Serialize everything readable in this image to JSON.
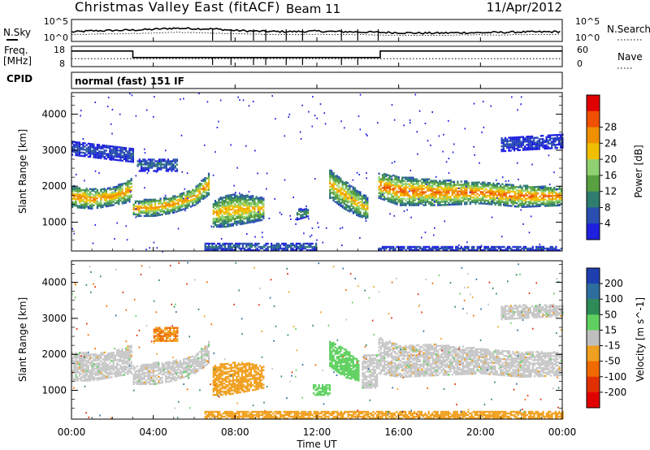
{
  "header": {
    "title": "Christmas Valley East (fitACF)",
    "beam": "Beam 11",
    "date": "11/Apr/2012"
  },
  "top_panels": {
    "nsky_label": "N.Sky",
    "nsearch_label": "N.Search",
    "nsky_ticks": [
      "10^5",
      "10^0"
    ],
    "nsearch_ticks": [
      "10^5",
      "10^0"
    ],
    "freq_label": "Freq.",
    "freq_unit": "[MHz]",
    "freq_ticks": [
      "18",
      "8"
    ],
    "nave_label": "Nave",
    "nave_ticks": [
      "60",
      "0"
    ],
    "cpid_label": "CPID",
    "cpid_value": "normal (fast) 151 IF"
  },
  "colors": {
    "power_scale": [
      "#1f1fe0",
      "#2a4fb0",
      "#2e7d6e",
      "#58a040",
      "#8fd070",
      "#f0c000",
      "#f09000",
      "#f05000",
      "#e00000"
    ],
    "velocity_scale": [
      "#1f3fb0",
      "#2e6e9e",
      "#2e8b57",
      "#5fd05f",
      "#bfbfbf",
      "#f0a020",
      "#f06a00",
      "#e03000",
      "#e00000"
    ],
    "text": "#000000"
  },
  "chart_data": [
    {
      "type": "line",
      "name": "noise-panel",
      "ylabel": "N.Sky",
      "y2label": "N.Search",
      "y_ticks": [
        "10^5",
        "10^0"
      ],
      "y2_ticks": [
        "10^5",
        "10^0"
      ],
      "xlim": [
        0,
        24
      ],
      "series": [
        {
          "name": "N.Sky",
          "x": [
            0,
            1,
            2,
            3,
            4,
            5,
            6,
            7,
            8,
            9,
            10,
            11,
            12,
            13,
            14,
            15,
            16,
            17,
            18,
            19,
            20,
            21,
            22,
            23,
            24
          ],
          "values": [
            2.1,
            2.4,
            2.5,
            2.6,
            2.8,
            3.1,
            3.0,
            2.9,
            2.5,
            2.3,
            2.2,
            2.2,
            2.3,
            2.2,
            2.1,
            2.0,
            1.9,
            1.8,
            1.8,
            1.9,
            1.9,
            2.0,
            2.1,
            2.1,
            2.2
          ]
        },
        {
          "name": "N.Search",
          "x": [
            0,
            1,
            2,
            3,
            4,
            5,
            6,
            7,
            8,
            9,
            10,
            11,
            12,
            13,
            14,
            15,
            16,
            17,
            18,
            19,
            20,
            21,
            22,
            23,
            24
          ],
          "values": [
            1.4,
            1.5,
            1.6,
            1.7,
            1.8,
            2.0,
            1.9,
            1.8,
            1.6,
            1.5,
            1.4,
            1.4,
            1.5,
            1.4,
            1.4,
            1.3,
            1.2,
            1.2,
            1.2,
            1.3,
            1.3,
            1.3,
            1.4,
            1.4,
            1.5
          ]
        }
      ]
    },
    {
      "type": "line",
      "name": "freq-panel",
      "ylabel": "Freq. [MHz]",
      "y2label": "Nave",
      "ylim": [
        8,
        18
      ],
      "y2lim": [
        0,
        60
      ],
      "xlim": [
        0,
        24
      ],
      "series": [
        {
          "name": "Freq.",
          "x": [
            0,
            3,
            3,
            15.1,
            15.1,
            24
          ],
          "values": [
            15.8,
            15.8,
            12.2,
            12.2,
            15.8,
            15.8
          ]
        },
        {
          "name": "Nave",
          "x": [
            0,
            24
          ],
          "values": [
            21,
            21
          ]
        }
      ]
    },
    {
      "type": "heatmap",
      "name": "power-panel",
      "ylabel": "Slant Range [km]",
      "colorbar_label": "Power [dB]",
      "colorbar_ticks": [
        4,
        8,
        12,
        16,
        20,
        24,
        28
      ],
      "colorbar_range": [
        0,
        32
      ],
      "y_ticks": [
        1000,
        2000,
        3000,
        4000
      ],
      "ylim": [
        200,
        4600
      ],
      "xlim": [
        0,
        24
      ],
      "bands": [
        {
          "x": [
            0,
            1,
            2,
            2.9
          ],
          "lo": [
            1450,
            1400,
            1500,
            1600
          ],
          "hi": [
            2050,
            1950,
            2000,
            2250
          ],
          "peak": 24
        },
        {
          "x": [
            3.0,
            4,
            5,
            6,
            6.7
          ],
          "lo": [
            1200,
            1200,
            1300,
            1500,
            1800
          ],
          "hi": [
            1600,
            1700,
            1750,
            2000,
            2400
          ],
          "peak": 24
        },
        {
          "x": [
            6.9,
            7.5,
            8.5,
            9.4
          ],
          "lo": [
            900,
            900,
            1000,
            1100
          ],
          "hi": [
            1600,
            1800,
            1800,
            1700
          ],
          "peak": 22
        },
        {
          "x": [
            11.0,
            11.6
          ],
          "lo": [
            1100,
            1200
          ],
          "hi": [
            1400,
            1400
          ],
          "peak": 12
        },
        {
          "x": [
            12.6,
            13.3,
            14.0,
            14.5
          ],
          "lo": [
            1700,
            1400,
            1200,
            1100
          ],
          "hi": [
            2500,
            2200,
            1900,
            1700
          ],
          "peak": 22
        },
        {
          "x": [
            15.0,
            16,
            18,
            20,
            22,
            24
          ],
          "lo": [
            1700,
            1500,
            1500,
            1550,
            1450,
            1500
          ],
          "hi": [
            2400,
            2300,
            2200,
            2150,
            2050,
            2000
          ],
          "peak": 26
        },
        {
          "x": [
            3.2,
            5.2
          ],
          "lo": [
            2450,
            2450
          ],
          "hi": [
            2800,
            2800
          ],
          "peak": 8
        },
        {
          "x": [
            0,
            1.5,
            3
          ],
          "lo": [
            2900,
            2800,
            2700
          ],
          "hi": [
            3300,
            3200,
            3100
          ],
          "peak": 6
        },
        {
          "x": [
            21,
            24
          ],
          "lo": [
            3000,
            3100
          ],
          "hi": [
            3400,
            3500
          ],
          "peak": 5
        },
        {
          "x": [
            6.5,
            12
          ],
          "lo": [
            250,
            250
          ],
          "hi": [
            450,
            450
          ],
          "peak": 8
        },
        {
          "x": [
            15,
            24
          ],
          "lo": [
            250,
            250
          ],
          "hi": [
            350,
            350
          ],
          "peak": 6
        }
      ]
    },
    {
      "type": "heatmap",
      "name": "velocity-panel",
      "ylabel": "Slant Range [km]",
      "colorbar_label": "Velocity [m s^-1]",
      "colorbar_ticks": [
        200,
        100,
        50,
        15,
        -15,
        -50,
        -100,
        -200
      ],
      "y_ticks": [
        1000,
        2000,
        3000,
        4000
      ],
      "ylim": [
        200,
        4600
      ],
      "xlim": [
        0,
        24
      ],
      "bands": [
        {
          "x": [
            0,
            1,
            2,
            2.9
          ],
          "lo": [
            1300,
            1300,
            1400,
            1500
          ],
          "hi": [
            2100,
            2050,
            2100,
            2300
          ],
          "vel": 0
        },
        {
          "x": [
            3.0,
            4,
            5,
            6,
            6.7
          ],
          "lo": [
            1200,
            1200,
            1300,
            1500,
            1800
          ],
          "hi": [
            1700,
            1800,
            1850,
            2000,
            2400
          ],
          "vel": 0
        },
        {
          "x": [
            4.0,
            5.2
          ],
          "lo": [
            2400,
            2400
          ],
          "hi": [
            2800,
            2800
          ],
          "vel": -50
        },
        {
          "x": [
            6.9,
            7.5,
            8.5,
            9.4
          ],
          "lo": [
            900,
            900,
            1000,
            1100
          ],
          "hi": [
            1700,
            1800,
            1800,
            1700
          ],
          "vel": -40
        },
        {
          "x": [
            11.8,
            12.6
          ],
          "lo": [
            900,
            900
          ],
          "hi": [
            1200,
            1200
          ],
          "vel": 40
        },
        {
          "x": [
            12.6,
            13.3,
            14.0
          ],
          "lo": [
            1700,
            1400,
            1300
          ],
          "hi": [
            2400,
            2200,
            1900
          ],
          "vel": 40
        },
        {
          "x": [
            14.2,
            14.9
          ],
          "lo": [
            1100,
            1100
          ],
          "hi": [
            2000,
            2000
          ],
          "vel": 0
        },
        {
          "x": [
            15.0,
            16,
            18,
            20,
            22,
            24
          ],
          "lo": [
            1500,
            1400,
            1450,
            1500,
            1400,
            1450
          ],
          "hi": [
            2500,
            2300,
            2300,
            2200,
            2100,
            2100
          ],
          "vel": 0
        },
        {
          "x": [
            21,
            24
          ],
          "lo": [
            3000,
            3100
          ],
          "hi": [
            3400,
            3400
          ],
          "vel": 0
        },
        {
          "x": [
            6.5,
            24
          ],
          "lo": [
            250,
            250
          ],
          "hi": [
            450,
            450
          ],
          "vel": -30
        }
      ]
    }
  ],
  "x_axis": {
    "ticks": [
      "00:00",
      "04:00",
      "08:00",
      "12:00",
      "16:00",
      "20:00",
      "00:00"
    ],
    "tick_hours": [
      0,
      4,
      8,
      12,
      16,
      20,
      24
    ],
    "label": "Time UT"
  }
}
